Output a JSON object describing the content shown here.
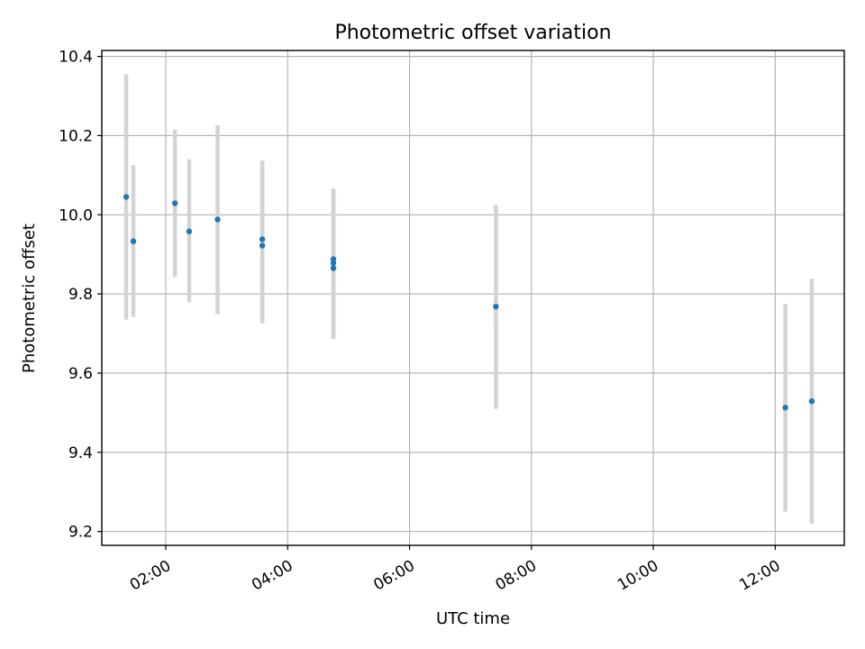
{
  "chart_data": {
    "type": "scatter",
    "title": "Photometric offset variation",
    "xlabel": "UTC time",
    "ylabel": "Photometric offset",
    "xlim": [
      "00:57",
      "13:08"
    ],
    "ylim": [
      9.165,
      10.415
    ],
    "grid": true,
    "x_ticks": [
      "02:00",
      "04:00",
      "06:00",
      "08:00",
      "10:00",
      "12:00"
    ],
    "y_ticks": [
      9.2,
      9.4,
      9.6,
      9.8,
      10.0,
      10.2,
      10.4
    ],
    "y_tick_labels": [
      "9.2",
      "9.4",
      "9.6",
      "9.8",
      "10.0",
      "10.2",
      "10.4"
    ],
    "error_bar_color": "#d3d3d3",
    "point_color": "#1f77b4",
    "series": [
      {
        "points": [
          {
            "x": "01:21",
            "y": 10.045,
            "ylo": 9.735,
            "yhi": 10.355
          },
          {
            "x": "01:28",
            "y": 9.933,
            "ylo": 9.742,
            "yhi": 10.125
          },
          {
            "x": "02:09",
            "y": 10.029,
            "ylo": 9.843,
            "yhi": 10.215
          },
          {
            "x": "02:23",
            "y": 9.958,
            "ylo": 9.779,
            "yhi": 10.14
          },
          {
            "x": "02:51",
            "y": 9.988,
            "ylo": 9.749,
            "yhi": 10.226
          },
          {
            "x": "03:35",
            "y": 9.938,
            "ylo": 9.74,
            "yhi": 10.137
          },
          {
            "x": "03:35",
            "y": 9.922,
            "ylo": 9.726,
            "yhi": 10.118
          },
          {
            "x": "04:45",
            "y": 9.888,
            "ylo": 9.708,
            "yhi": 10.066
          },
          {
            "x": "04:45",
            "y": 9.878,
            "ylo": 9.695,
            "yhi": 10.06
          },
          {
            "x": "04:45",
            "y": 9.865,
            "ylo": 9.686,
            "yhi": 10.04
          },
          {
            "x": "07:25",
            "y": 9.768,
            "ylo": 9.51,
            "yhi": 10.025
          },
          {
            "x": "12:10",
            "y": 9.513,
            "ylo": 9.25,
            "yhi": 9.775
          },
          {
            "x": "12:36",
            "y": 9.529,
            "ylo": 9.22,
            "yhi": 9.838
          }
        ]
      }
    ]
  }
}
